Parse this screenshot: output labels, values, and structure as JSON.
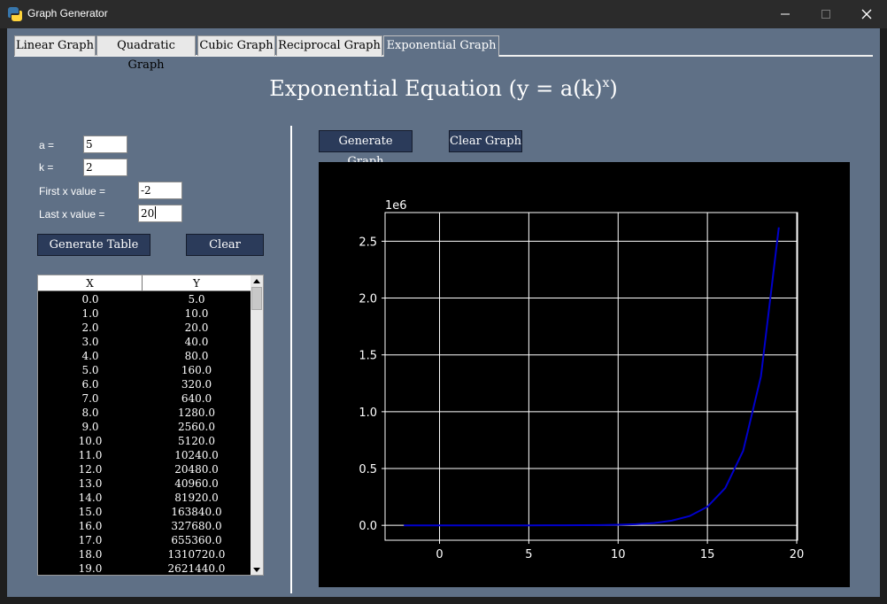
{
  "window": {
    "title": "Graph Generator"
  },
  "tabs": [
    "Linear Graph",
    "Quadratic Graph",
    "Cubic Graph",
    "Reciprocal Graph",
    "Exponential Graph"
  ],
  "active_tab": "Exponential Graph",
  "heading": {
    "text": "Exponential Equation (y = a(k)",
    "sup": "x",
    "close": ")"
  },
  "form": {
    "a_label": "a =",
    "a_value": "5",
    "k_label": "k =",
    "k_value": "2",
    "first_label": "First x value =",
    "first_value": "-2",
    "last_label": "Last x value =",
    "last_value": "20"
  },
  "buttons": {
    "generate_table": "Generate Table",
    "clear": "Clear",
    "generate_graph": "Generate Graph",
    "clear_graph": "Clear Graph"
  },
  "table": {
    "headers": [
      "X",
      "Y"
    ],
    "rows": [
      [
        "0.0",
        "5.0"
      ],
      [
        "1.0",
        "10.0"
      ],
      [
        "2.0",
        "20.0"
      ],
      [
        "3.0",
        "40.0"
      ],
      [
        "4.0",
        "80.0"
      ],
      [
        "5.0",
        "160.0"
      ],
      [
        "6.0",
        "320.0"
      ],
      [
        "7.0",
        "640.0"
      ],
      [
        "8.0",
        "1280.0"
      ],
      [
        "9.0",
        "2560.0"
      ],
      [
        "10.0",
        "5120.0"
      ],
      [
        "11.0",
        "10240.0"
      ],
      [
        "12.0",
        "20480.0"
      ],
      [
        "13.0",
        "40960.0"
      ],
      [
        "14.0",
        "81920.0"
      ],
      [
        "15.0",
        "163840.0"
      ],
      [
        "16.0",
        "327680.0"
      ],
      [
        "17.0",
        "655360.0"
      ],
      [
        "18.0",
        "1310720.0"
      ],
      [
        "19.0",
        "2621440.0"
      ]
    ]
  },
  "colors": {
    "panel": "#5f7086",
    "button": "#2b3b5a",
    "line": "#0000cc",
    "plot_bg": "#000000",
    "grid": "#ffffff"
  },
  "chart_data": {
    "type": "line",
    "title": "",
    "xlabel": "",
    "ylabel": "",
    "offset_label": "1e6",
    "grid": true,
    "xlim": [
      -3.05,
      20.05
    ],
    "ylim": [
      -131072,
      2752512
    ],
    "xticks": [
      0,
      5,
      10,
      15,
      20
    ],
    "xtick_labels": [
      "0",
      "5",
      "10",
      "15",
      "20"
    ],
    "yticks": [
      0,
      500000,
      1000000,
      1500000,
      2000000,
      2500000
    ],
    "ytick_labels": [
      "0.0",
      "0.5",
      "1.0",
      "1.5",
      "2.0",
      "2.5"
    ],
    "series": [
      {
        "x": [
          -2,
          -1,
          0,
          1,
          2,
          3,
          4,
          5,
          6,
          7,
          8,
          9,
          10,
          11,
          12,
          13,
          14,
          15,
          16,
          17,
          18,
          19
        ],
        "y": [
          1.25,
          2.5,
          5,
          10,
          20,
          40,
          80,
          160,
          320,
          640,
          1280,
          2560,
          5120,
          10240,
          20480,
          40960,
          81920,
          163840,
          327680,
          655360,
          1310720,
          2621440
        ],
        "color": "#0000cc"
      }
    ]
  }
}
